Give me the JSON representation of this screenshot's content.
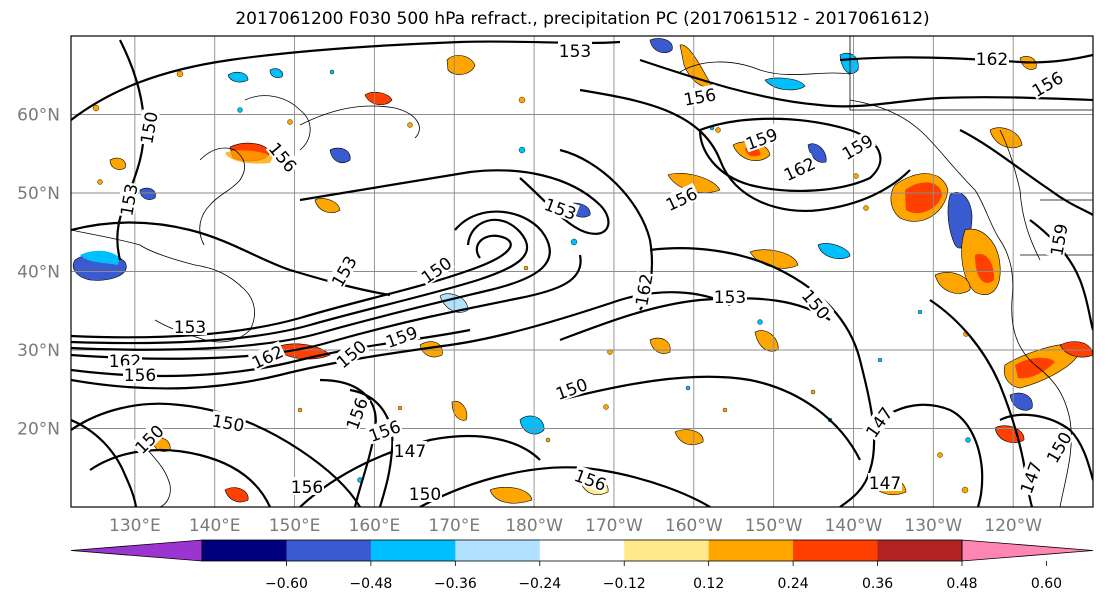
{
  "title": "2017061200 F030 500 hPa refract., precipitation PC (2017061512 - 2017061612)",
  "lat_labels": [
    "60°N",
    "50°N",
    "40°N",
    "30°N",
    "20°N"
  ],
  "lon_labels": [
    "130°E",
    "140°E",
    "150°E",
    "160°E",
    "170°E",
    "180°W",
    "170°W",
    "160°W",
    "150°W",
    "140°W",
    "130°W",
    "120°W"
  ],
  "colorbar": {
    "ticks": [
      "−0.60",
      "−0.48",
      "−0.36",
      "−0.24",
      "−0.12",
      "0.12",
      "0.24",
      "0.36",
      "0.48",
      "0.60"
    ],
    "colors": [
      "#9a35d0",
      "#00007f",
      "#3a5bd0",
      "#00bfff",
      "#b0e2ff",
      "#ffffff",
      "#ffe98a",
      "#ffa500",
      "#ff4000",
      "#b22222",
      "#ff86b2"
    ]
  },
  "contour_labels": [
    "153",
    "156",
    "162",
    "159",
    "156",
    "153",
    "162",
    "159",
    "156",
    "150",
    "153",
    "162",
    "153",
    "150",
    "153",
    "159",
    "150",
    "162",
    "162",
    "156",
    "150",
    "147",
    "150",
    "156",
    "156",
    "147",
    "150",
    "156",
    "150",
    "147",
    "156",
    "147",
    "150",
    "159",
    "156",
    "153",
    "150"
  ],
  "map": {
    "lat_range": [
      10,
      70
    ],
    "lon_range": [
      122,
      250
    ]
  }
}
